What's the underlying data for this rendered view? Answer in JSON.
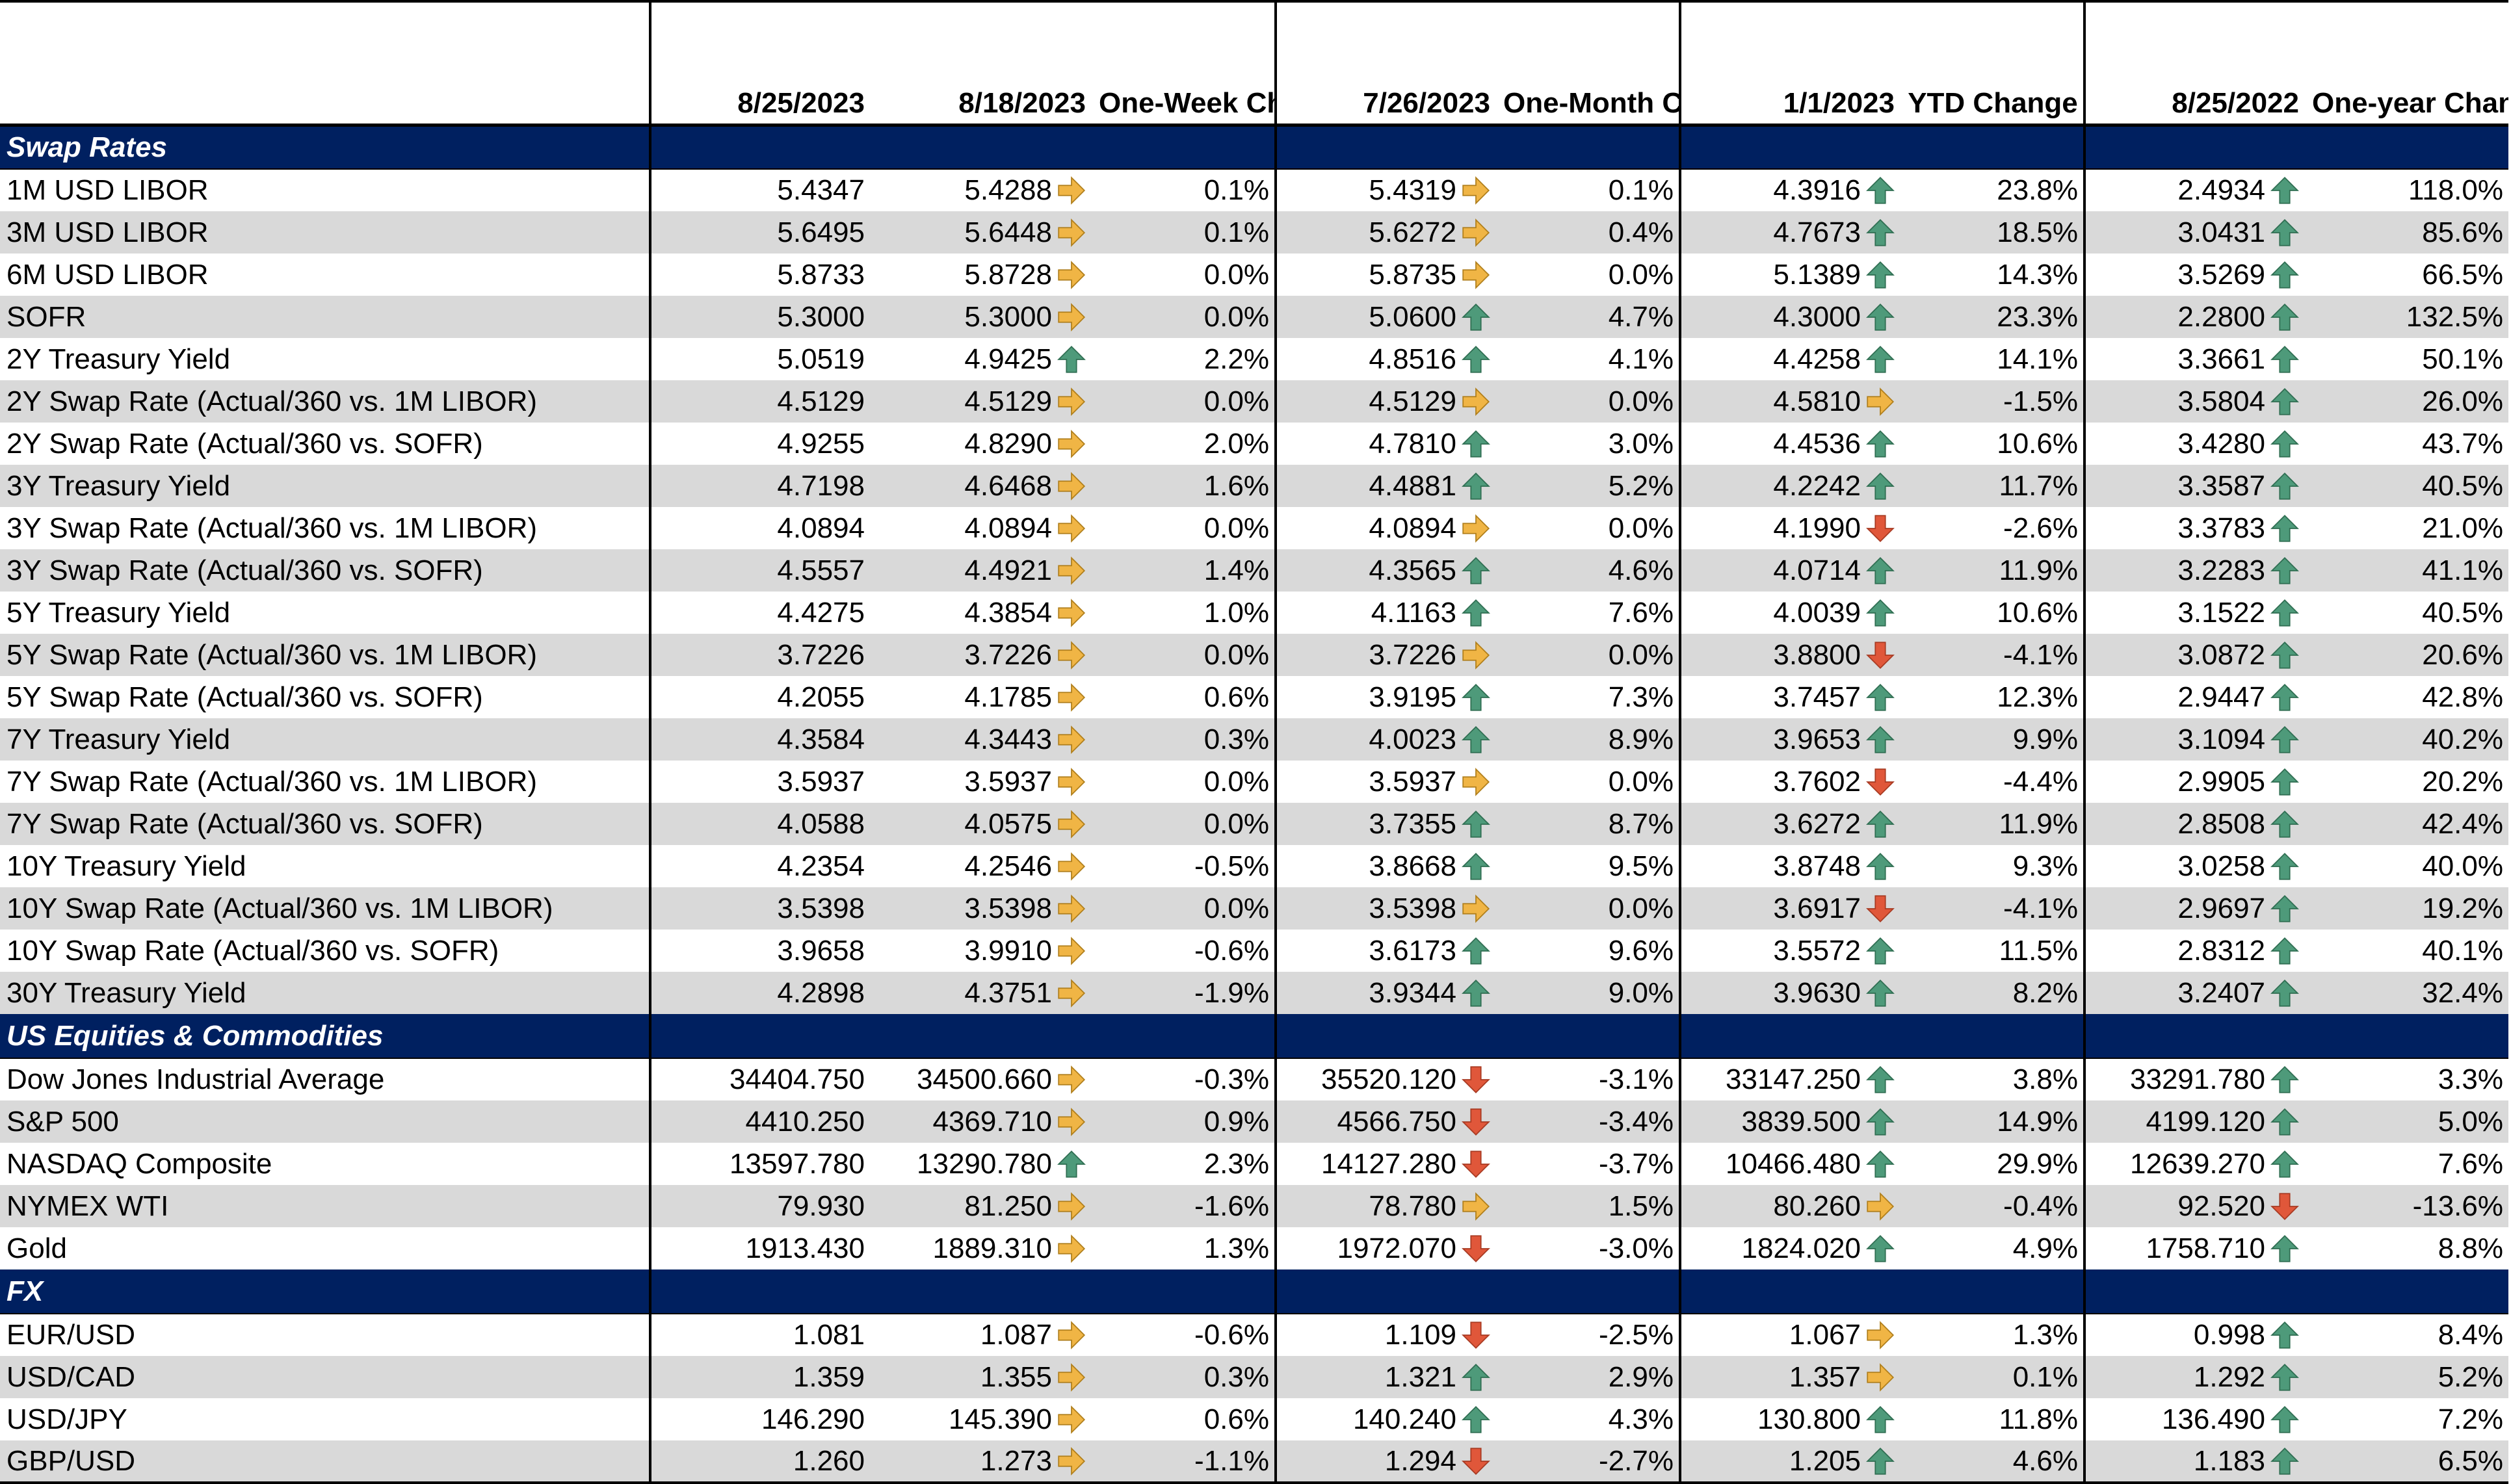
{
  "headers": {
    "label": "",
    "d1": "8/25/2023",
    "d2": "8/18/2023",
    "c1": "One-Week Change",
    "d3": "7/26/2023",
    "c2": "One-Month Change",
    "d4": "1/1/2023",
    "c3": "YTD Change",
    "d5": "8/25/2022",
    "c4": "One-year Change"
  },
  "colors": {
    "up": "#4e9a7a",
    "flat": "#f0b545",
    "down": "#e0573a",
    "section_bg": "#002060",
    "stripe": "#d9d9d9"
  },
  "sections": [
    {
      "title": "Swap Rates",
      "rows": [
        {
          "label": "1M USD LIBOR",
          "v1": "5.4347",
          "v2": "5.4288",
          "a2": "flat",
          "c1": "0.1%",
          "v3": "5.4319",
          "a3": "flat",
          "c2": "0.1%",
          "v4": "4.3916",
          "a4": "up",
          "c3": "23.8%",
          "v5": "2.4934",
          "a5": "up",
          "c4": "118.0%"
        },
        {
          "label": "3M USD LIBOR",
          "v1": "5.6495",
          "v2": "5.6448",
          "a2": "flat",
          "c1": "0.1%",
          "v3": "5.6272",
          "a3": "flat",
          "c2": "0.4%",
          "v4": "4.7673",
          "a4": "up",
          "c3": "18.5%",
          "v5": "3.0431",
          "a5": "up",
          "c4": "85.6%"
        },
        {
          "label": "6M USD LIBOR",
          "v1": "5.8733",
          "v2": "5.8728",
          "a2": "flat",
          "c1": "0.0%",
          "v3": "5.8735",
          "a3": "flat",
          "c2": "0.0%",
          "v4": "5.1389",
          "a4": "up",
          "c3": "14.3%",
          "v5": "3.5269",
          "a5": "up",
          "c4": "66.5%"
        },
        {
          "label": "SOFR",
          "v1": "5.3000",
          "v2": "5.3000",
          "a2": "flat",
          "c1": "0.0%",
          "v3": "5.0600",
          "a3": "up",
          "c2": "4.7%",
          "v4": "4.3000",
          "a4": "up",
          "c3": "23.3%",
          "v5": "2.2800",
          "a5": "up",
          "c4": "132.5%"
        },
        {
          "label": "2Y Treasury Yield",
          "v1": "5.0519",
          "v2": "4.9425",
          "a2": "up",
          "c1": "2.2%",
          "v3": "4.8516",
          "a3": "up",
          "c2": "4.1%",
          "v4": "4.4258",
          "a4": "up",
          "c3": "14.1%",
          "v5": "3.3661",
          "a5": "up",
          "c4": "50.1%"
        },
        {
          "label": "2Y Swap Rate (Actual/360 vs. 1M LIBOR)",
          "v1": "4.5129",
          "v2": "4.5129",
          "a2": "flat",
          "c1": "0.0%",
          "v3": "4.5129",
          "a3": "flat",
          "c2": "0.0%",
          "v4": "4.5810",
          "a4": "flat",
          "c3": "-1.5%",
          "v5": "3.5804",
          "a5": "up",
          "c4": "26.0%"
        },
        {
          "label": "2Y Swap Rate (Actual/360 vs. SOFR)",
          "v1": "4.9255",
          "v2": "4.8290",
          "a2": "flat",
          "c1": "2.0%",
          "v3": "4.7810",
          "a3": "up",
          "c2": "3.0%",
          "v4": "4.4536",
          "a4": "up",
          "c3": "10.6%",
          "v5": "3.4280",
          "a5": "up",
          "c4": "43.7%"
        },
        {
          "label": "3Y Treasury Yield",
          "v1": "4.7198",
          "v2": "4.6468",
          "a2": "flat",
          "c1": "1.6%",
          "v3": "4.4881",
          "a3": "up",
          "c2": "5.2%",
          "v4": "4.2242",
          "a4": "up",
          "c3": "11.7%",
          "v5": "3.3587",
          "a5": "up",
          "c4": "40.5%"
        },
        {
          "label": "3Y Swap Rate (Actual/360 vs. 1M LIBOR)",
          "v1": "4.0894",
          "v2": "4.0894",
          "a2": "flat",
          "c1": "0.0%",
          "v3": "4.0894",
          "a3": "flat",
          "c2": "0.0%",
          "v4": "4.1990",
          "a4": "down",
          "c3": "-2.6%",
          "v5": "3.3783",
          "a5": "up",
          "c4": "21.0%"
        },
        {
          "label": "3Y Swap Rate (Actual/360 vs. SOFR)",
          "v1": "4.5557",
          "v2": "4.4921",
          "a2": "flat",
          "c1": "1.4%",
          "v3": "4.3565",
          "a3": "up",
          "c2": "4.6%",
          "v4": "4.0714",
          "a4": "up",
          "c3": "11.9%",
          "v5": "3.2283",
          "a5": "up",
          "c4": "41.1%"
        },
        {
          "label": "5Y Treasury Yield",
          "v1": "4.4275",
          "v2": "4.3854",
          "a2": "flat",
          "c1": "1.0%",
          "v3": "4.1163",
          "a3": "up",
          "c2": "7.6%",
          "v4": "4.0039",
          "a4": "up",
          "c3": "10.6%",
          "v5": "3.1522",
          "a5": "up",
          "c4": "40.5%"
        },
        {
          "label": "5Y Swap Rate (Actual/360 vs. 1M LIBOR)",
          "v1": "3.7226",
          "v2": "3.7226",
          "a2": "flat",
          "c1": "0.0%",
          "v3": "3.7226",
          "a3": "flat",
          "c2": "0.0%",
          "v4": "3.8800",
          "a4": "down",
          "c3": "-4.1%",
          "v5": "3.0872",
          "a5": "up",
          "c4": "20.6%"
        },
        {
          "label": "5Y Swap Rate (Actual/360 vs. SOFR)",
          "v1": "4.2055",
          "v2": "4.1785",
          "a2": "flat",
          "c1": "0.6%",
          "v3": "3.9195",
          "a3": "up",
          "c2": "7.3%",
          "v4": "3.7457",
          "a4": "up",
          "c3": "12.3%",
          "v5": "2.9447",
          "a5": "up",
          "c4": "42.8%"
        },
        {
          "label": "7Y Treasury Yield",
          "v1": "4.3584",
          "v2": "4.3443",
          "a2": "flat",
          "c1": "0.3%",
          "v3": "4.0023",
          "a3": "up",
          "c2": "8.9%",
          "v4": "3.9653",
          "a4": "up",
          "c3": "9.9%",
          "v5": "3.1094",
          "a5": "up",
          "c4": "40.2%"
        },
        {
          "label": "7Y Swap Rate (Actual/360 vs. 1M LIBOR)",
          "v1": "3.5937",
          "v2": "3.5937",
          "a2": "flat",
          "c1": "0.0%",
          "v3": "3.5937",
          "a3": "flat",
          "c2": "0.0%",
          "v4": "3.7602",
          "a4": "down",
          "c3": "-4.4%",
          "v5": "2.9905",
          "a5": "up",
          "c4": "20.2%"
        },
        {
          "label": "7Y Swap Rate (Actual/360 vs. SOFR)",
          "v1": "4.0588",
          "v2": "4.0575",
          "a2": "flat",
          "c1": "0.0%",
          "v3": "3.7355",
          "a3": "up",
          "c2": "8.7%",
          "v4": "3.6272",
          "a4": "up",
          "c3": "11.9%",
          "v5": "2.8508",
          "a5": "up",
          "c4": "42.4%"
        },
        {
          "label": "10Y Treasury Yield",
          "v1": "4.2354",
          "v2": "4.2546",
          "a2": "flat",
          "c1": "-0.5%",
          "v3": "3.8668",
          "a3": "up",
          "c2": "9.5%",
          "v4": "3.8748",
          "a4": "up",
          "c3": "9.3%",
          "v5": "3.0258",
          "a5": "up",
          "c4": "40.0%"
        },
        {
          "label": "10Y Swap Rate (Actual/360 vs. 1M LIBOR)",
          "v1": "3.5398",
          "v2": "3.5398",
          "a2": "flat",
          "c1": "0.0%",
          "v3": "3.5398",
          "a3": "flat",
          "c2": "0.0%",
          "v4": "3.6917",
          "a4": "down",
          "c3": "-4.1%",
          "v5": "2.9697",
          "a5": "up",
          "c4": "19.2%"
        },
        {
          "label": "10Y Swap Rate (Actual/360 vs. SOFR)",
          "v1": "3.9658",
          "v2": "3.9910",
          "a2": "flat",
          "c1": "-0.6%",
          "v3": "3.6173",
          "a3": "up",
          "c2": "9.6%",
          "v4": "3.5572",
          "a4": "up",
          "c3": "11.5%",
          "v5": "2.8312",
          "a5": "up",
          "c4": "40.1%"
        },
        {
          "label": "30Y Treasury Yield",
          "v1": "4.2898",
          "v2": "4.3751",
          "a2": "flat",
          "c1": "-1.9%",
          "v3": "3.9344",
          "a3": "up",
          "c2": "9.0%",
          "v4": "3.9630",
          "a4": "up",
          "c3": "8.2%",
          "v5": "3.2407",
          "a5": "up",
          "c4": "32.4%"
        }
      ]
    },
    {
      "title": "US Equities & Commodities",
      "rows": [
        {
          "label": "Dow Jones Industrial Average",
          "v1": "34404.750",
          "v2": "34500.660",
          "a2": "flat",
          "c1": "-0.3%",
          "v3": "35520.120",
          "a3": "down",
          "c2": "-3.1%",
          "v4": "33147.250",
          "a4": "up",
          "c3": "3.8%",
          "v5": "33291.780",
          "a5": "up",
          "c4": "3.3%"
        },
        {
          "label": "S&P 500",
          "v1": "4410.250",
          "v2": "4369.710",
          "a2": "flat",
          "c1": "0.9%",
          "v3": "4566.750",
          "a3": "down",
          "c2": "-3.4%",
          "v4": "3839.500",
          "a4": "up",
          "c3": "14.9%",
          "v5": "4199.120",
          "a5": "up",
          "c4": "5.0%"
        },
        {
          "label": "NASDAQ Composite",
          "v1": "13597.780",
          "v2": "13290.780",
          "a2": "up",
          "c1": "2.3%",
          "v3": "14127.280",
          "a3": "down",
          "c2": "-3.7%",
          "v4": "10466.480",
          "a4": "up",
          "c3": "29.9%",
          "v5": "12639.270",
          "a5": "up",
          "c4": "7.6%"
        },
        {
          "label": "NYMEX WTI",
          "v1": "79.930",
          "v2": "81.250",
          "a2": "flat",
          "c1": "-1.6%",
          "v3": "78.780",
          "a3": "flat",
          "c2": "1.5%",
          "v4": "80.260",
          "a4": "flat",
          "c3": "-0.4%",
          "v5": "92.520",
          "a5": "down",
          "c4": "-13.6%"
        },
        {
          "label": "Gold",
          "v1": "1913.430",
          "v2": "1889.310",
          "a2": "flat",
          "c1": "1.3%",
          "v3": "1972.070",
          "a3": "down",
          "c2": "-3.0%",
          "v4": "1824.020",
          "a4": "up",
          "c3": "4.9%",
          "v5": "1758.710",
          "a5": "up",
          "c4": "8.8%"
        }
      ]
    },
    {
      "title": "FX",
      "rows": [
        {
          "label": "EUR/USD",
          "v1": "1.081",
          "v2": "1.087",
          "a2": "flat",
          "c1": "-0.6%",
          "v3": "1.109",
          "a3": "down",
          "c2": "-2.5%",
          "v4": "1.067",
          "a4": "flat",
          "c3": "1.3%",
          "v5": "0.998",
          "a5": "up",
          "c4": "8.4%"
        },
        {
          "label": "USD/CAD",
          "v1": "1.359",
          "v2": "1.355",
          "a2": "flat",
          "c1": "0.3%",
          "v3": "1.321",
          "a3": "up",
          "c2": "2.9%",
          "v4": "1.357",
          "a4": "flat",
          "c3": "0.1%",
          "v5": "1.292",
          "a5": "up",
          "c4": "5.2%"
        },
        {
          "label": "USD/JPY",
          "v1": "146.290",
          "v2": "145.390",
          "a2": "flat",
          "c1": "0.6%",
          "v3": "140.240",
          "a3": "up",
          "c2": "4.3%",
          "v4": "130.800",
          "a4": "up",
          "c3": "11.8%",
          "v5": "136.490",
          "a5": "up",
          "c4": "7.2%"
        },
        {
          "label": "GBP/USD",
          "v1": "1.260",
          "v2": "1.273",
          "a2": "flat",
          "c1": "-1.1%",
          "v3": "1.294",
          "a3": "down",
          "c2": "-2.7%",
          "v4": "1.205",
          "a4": "up",
          "c3": "4.6%",
          "v5": "1.183",
          "a5": "up",
          "c4": "6.5%"
        }
      ]
    }
  ]
}
